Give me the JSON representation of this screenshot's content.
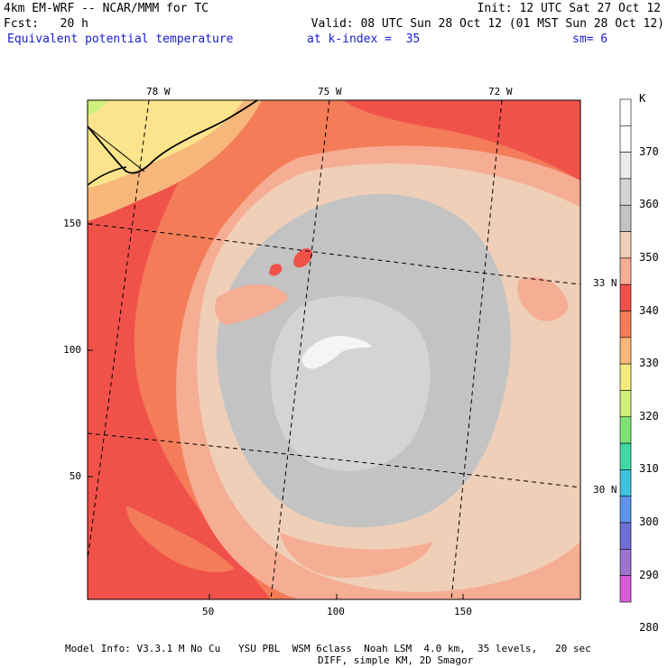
{
  "header": {
    "line1_left": "4km EM-WRF -- NCAR/MMM for TC",
    "line1_right": "Init: 12 UTC Sat 27 Oct 12",
    "line2_left": "Fcst:   20 h",
    "line2_right": "Valid: 08 UTC Sun 28 Oct 12 (01 MST Sun 28 Oct 12)",
    "line3_field": "Equivalent potential temperature",
    "line3_level": "at k-index =  35",
    "line3_smooth": "sm= 6"
  },
  "map": {
    "lon_labels": [
      "78 W",
      "75 W",
      "72 W"
    ],
    "lat_labels": [
      "33 N",
      "30 N"
    ],
    "x_ticks": [
      "50",
      "100",
      "150"
    ],
    "y_ticks": [
      "150",
      "100",
      "50"
    ]
  },
  "colorbar": {
    "unit": "K",
    "labels": [
      "370",
      "360",
      "350",
      "340",
      "330",
      "320",
      "310",
      "300",
      "290",
      "280"
    ],
    "colors": [
      "#ffffff",
      "#ffffff",
      "#ebebeb",
      "#d4d4d4",
      "#c3c3c3",
      "#f0cfb8",
      "#f5ad94",
      "#f0524a",
      "#f47c58",
      "#f7b67a",
      "#f5ea80",
      "#cff07a",
      "#7fe277",
      "#3fd9a6",
      "#40c2dc",
      "#5f93e8",
      "#6f70d6",
      "#9b74cf",
      "#d65ed8"
    ]
  },
  "footer": {
    "line1": "Model Info: V3.3.1 M No Cu   YSU PBL  WSM 6class  Noah LSM  4.0 km,  35 levels,   20 sec",
    "line2": "DIFF, simple KM, 2D Smagor"
  }
}
